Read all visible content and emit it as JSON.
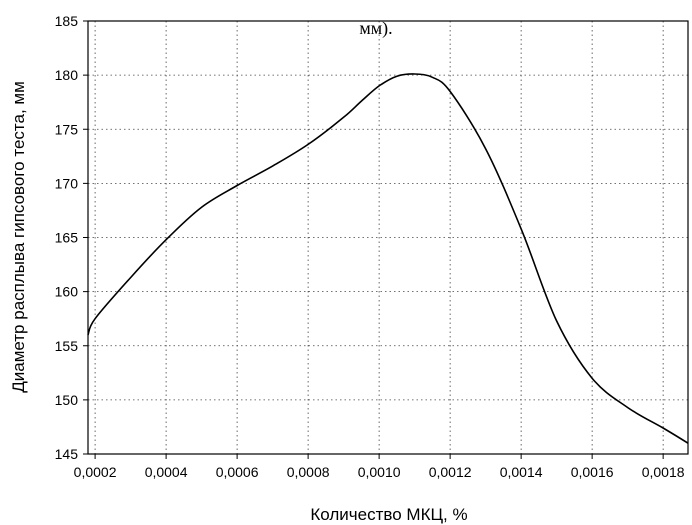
{
  "header_fragment": "мм).",
  "chart_data": {
    "type": "line",
    "xlabel": "Количество МКЦ, %",
    "ylabel": "Диаметр расплыва гипсового теста, мм",
    "xlim": [
      0.00018,
      0.00187
    ],
    "ylim": [
      145,
      185
    ],
    "xticks": [
      0.0002,
      0.0004,
      0.0006,
      0.0008,
      0.001,
      0.0012,
      0.0014,
      0.0016,
      0.0018
    ],
    "xtick_labels": [
      "0,0002",
      "0,0004",
      "0,0006",
      "0,0008",
      "0,0010",
      "0,0012",
      "0,0014",
      "0,0016",
      "0,0018"
    ],
    "yticks": [
      145,
      150,
      155,
      160,
      165,
      170,
      175,
      180,
      185
    ],
    "ytick_labels": [
      "145",
      "150",
      "155",
      "160",
      "165",
      "170",
      "175",
      "180",
      "185"
    ],
    "grid": true,
    "series": [
      {
        "x": [
          0.00018,
          0.0002,
          0.0003,
          0.0004,
          0.0005,
          0.0006,
          0.0007,
          0.0008,
          0.0009,
          0.00095,
          0.001,
          0.00105,
          0.0011,
          0.00115,
          0.0012,
          0.0013,
          0.0014,
          0.0015,
          0.0016,
          0.0017,
          0.0018,
          0.00187
        ],
        "y": [
          156,
          157.5,
          161.3,
          164.8,
          167.8,
          169.8,
          171.6,
          173.6,
          176.1,
          177.6,
          179,
          179.9,
          180.1,
          179.8,
          178.5,
          173.2,
          165.8,
          157.3,
          152,
          149.3,
          147.4,
          146
        ]
      }
    ]
  }
}
